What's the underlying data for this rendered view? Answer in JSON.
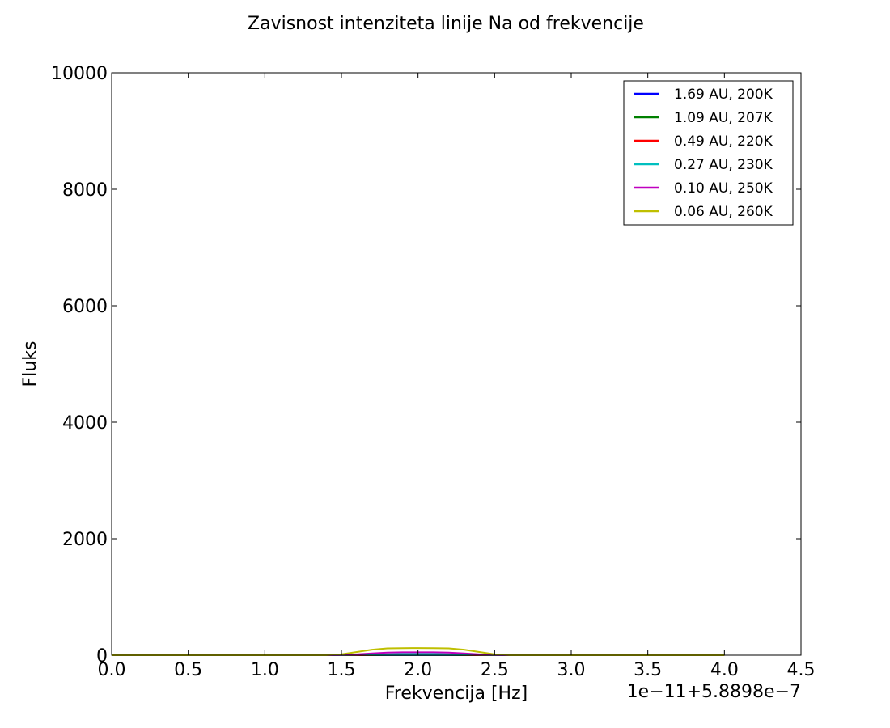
{
  "chart_data": {
    "type": "line",
    "title": "Zavisnost intenziteta linije Na od frekvencije",
    "xlabel": "Frekvencija [Hz]",
    "ylabel": "Fluks",
    "x_offset_label": "1e−11+5.8898e−7",
    "xlim": [
      0.0,
      4.5
    ],
    "ylim": [
      0,
      10000
    ],
    "x_ticks": [
      0.0,
      0.5,
      1.0,
      1.5,
      2.0,
      2.5,
      3.0,
      3.5,
      4.0,
      4.5
    ],
    "x_tick_labels": [
      "0.0",
      "0.5",
      "1.0",
      "1.5",
      "2.0",
      "2.5",
      "3.0",
      "3.5",
      "4.0",
      "4.5"
    ],
    "y_ticks": [
      0,
      2000,
      4000,
      6000,
      8000,
      10000
    ],
    "y_tick_labels": [
      "0",
      "2000",
      "4000",
      "6000",
      "8000",
      "10000"
    ],
    "grid": false,
    "legend_position": "top-right",
    "x": [
      0.0,
      0.5,
      1.0,
      1.4,
      1.5,
      1.6,
      1.7,
      1.8,
      1.9,
      2.0,
      2.1,
      2.2,
      2.3,
      2.4,
      2.5,
      2.6,
      3.0,
      3.5,
      4.0
    ],
    "series": [
      {
        "name": "1.69 AU, 200K",
        "color": "#0000ff",
        "values": [
          0,
          0,
          0,
          0,
          0,
          0,
          1,
          1,
          1,
          1,
          1,
          1,
          1,
          1,
          0,
          0,
          0,
          0,
          0
        ]
      },
      {
        "name": "1.09 AU, 207K",
        "color": "#008000",
        "values": [
          0,
          0,
          0,
          0,
          0,
          1,
          2,
          3,
          3,
          3,
          3,
          3,
          2,
          1,
          0,
          0,
          0,
          0,
          0
        ]
      },
      {
        "name": "0.49 AU, 220K",
        "color": "#ff0000",
        "values": [
          0,
          0,
          0,
          0,
          0,
          2,
          6,
          10,
          11,
          11,
          11,
          10,
          6,
          2,
          0,
          0,
          0,
          0,
          0
        ]
      },
      {
        "name": "0.27 AU, 230K",
        "color": "#00bfbf",
        "values": [
          0,
          0,
          0,
          0,
          1,
          5,
          12,
          18,
          20,
          20,
          20,
          18,
          12,
          5,
          1,
          0,
          0,
          0,
          0
        ]
      },
      {
        "name": "0.10 AU, 250K",
        "color": "#bf00bf",
        "values": [
          0,
          0,
          0,
          0,
          3,
          15,
          32,
          45,
          50,
          50,
          50,
          45,
          32,
          15,
          3,
          0,
          0,
          0,
          0
        ]
      },
      {
        "name": "0.06 AU, 260K",
        "color": "#bfbf00",
        "values": [
          0,
          0,
          0,
          0,
          15,
          55,
          95,
          118,
          122,
          123,
          122,
          118,
          95,
          55,
          15,
          0,
          0,
          0,
          0
        ]
      }
    ]
  }
}
